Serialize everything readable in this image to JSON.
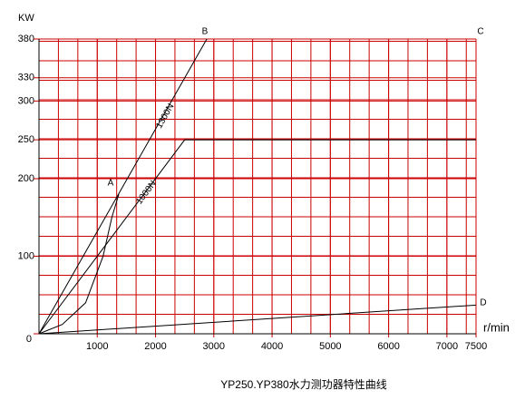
{
  "chart_data": {
    "type": "line",
    "title": "YP250.YP380水力测功器特性曲线",
    "y_label": "KW",
    "x_label": "r/min",
    "xlim": [
      0,
      7500
    ],
    "xticks": [
      1000,
      2000,
      3000,
      4000,
      5000,
      6000,
      7000,
      7500
    ],
    "ylim": [
      0,
      380
    ],
    "yticks": [
      0,
      100,
      200,
      250,
      300,
      330,
      380
    ],
    "grid": true,
    "grid_color": "#cc0000",
    "series": [
      {
        "name": "1300N",
        "color": "#000000",
        "x": [
          0,
          2880
        ],
        "values": [
          0,
          380
        ]
      },
      {
        "name": "1000N",
        "color": "#000000",
        "x": [
          0,
          2500,
          7500
        ],
        "values": [
          0,
          250,
          250
        ]
      },
      {
        "color": "#000000",
        "x": [
          0,
          400,
          800,
          1100,
          1250,
          1370
        ],
        "values": [
          0,
          12,
          40,
          100,
          150,
          180
        ]
      },
      {
        "color": "#000000",
        "x": [
          0,
          7500
        ],
        "values": [
          0,
          37
        ]
      }
    ],
    "annotations": [
      "A",
      "B",
      "C",
      "D"
    ]
  }
}
